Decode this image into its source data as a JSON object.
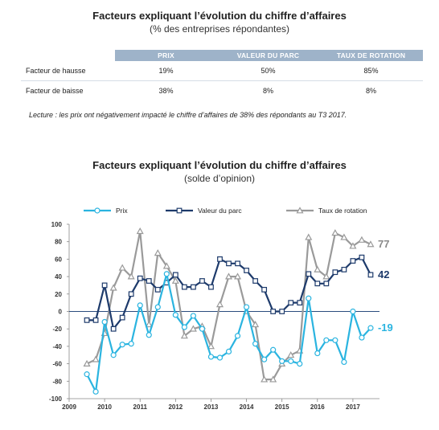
{
  "table": {
    "title": "Facteurs expliquant l’évolution du chiffre d’affaires",
    "subtitle": "(% des entreprises répondantes)",
    "columns": [
      "PRIX",
      "VALEUR DU PARC",
      "TAUX DE ROTATION"
    ],
    "rows": [
      {
        "label": "Facteur de hausse",
        "values": [
          "19%",
          "50%",
          "85%"
        ]
      },
      {
        "label": "Facteur de baisse",
        "values": [
          "38%",
          "8%",
          "8%"
        ]
      }
    ],
    "note": "Lecture : les prix ont négativement impacté le chiffre d’affaires de 38% des répondants au T3 2017."
  },
  "chart_data": {
    "type": "line",
    "title": "Facteurs expliquant l’évolution du chiffre d’affaires",
    "subtitle": "(solde d’opinion)",
    "ylim": [
      -100,
      100
    ],
    "yticks": [
      100,
      80,
      60,
      40,
      20,
      0,
      -20,
      -40,
      -60,
      -80,
      -100
    ],
    "xlim": [
      2009,
      2017.75
    ],
    "xticks": [
      2009,
      2010,
      2011,
      2012,
      2013,
      2014,
      2015,
      2016,
      2017
    ],
    "zero_line": true,
    "legend_position": "top",
    "series": [
      {
        "name": "Prix",
        "color": "#2ab4e0",
        "marker": "circle",
        "end_label": "-19",
        "x": [
          2009.5,
          2009.75,
          2010,
          2010.25,
          2010.5,
          2010.75,
          2011,
          2011.25,
          2011.5,
          2011.75,
          2012,
          2012.25,
          2012.5,
          2012.75,
          2013,
          2013.25,
          2013.5,
          2013.75,
          2014,
          2014.25,
          2014.5,
          2014.75,
          2015,
          2015.25,
          2015.5,
          2015.75,
          2016,
          2016.25,
          2016.5,
          2016.75,
          2017,
          2017.25,
          2017.5
        ],
        "values": [
          -72,
          -92,
          -12,
          -50,
          -38,
          -37,
          7,
          -27,
          5,
          43,
          -4,
          -18,
          -5,
          -20,
          -52,
          -53,
          -46,
          -28,
          5,
          -37,
          -55,
          -44,
          -57,
          -57,
          -60,
          15,
          -48,
          -33,
          -33,
          -58,
          0,
          -30,
          -19
        ]
      },
      {
        "name": "Valeur du parc",
        "color": "#1d3a6b",
        "marker": "square",
        "end_label": "42",
        "x": [
          2009.5,
          2009.75,
          2010,
          2010.25,
          2010.5,
          2010.75,
          2011,
          2011.25,
          2011.5,
          2011.75,
          2012,
          2012.25,
          2012.5,
          2012.75,
          2013,
          2013.25,
          2013.5,
          2013.75,
          2014,
          2014.25,
          2014.5,
          2014.75,
          2015,
          2015.25,
          2015.5,
          2015.75,
          2016,
          2016.25,
          2016.5,
          2016.75,
          2017,
          2017.25,
          2017.5
        ],
        "values": [
          -10,
          -10,
          30,
          -20,
          -7,
          20,
          38,
          35,
          25,
          33,
          42,
          28,
          28,
          35,
          28,
          60,
          55,
          55,
          47,
          35,
          25,
          0,
          0,
          10,
          10,
          43,
          32,
          32,
          45,
          48,
          58,
          62,
          42
        ]
      },
      {
        "name": "Taux de rotation",
        "color": "#9a9a9a",
        "marker": "triangle",
        "end_label": "77",
        "x": [
          2009.5,
          2009.75,
          2010,
          2010.25,
          2010.5,
          2010.75,
          2011,
          2011.25,
          2011.5,
          2011.75,
          2012,
          2012.25,
          2012.5,
          2012.75,
          2013,
          2013.25,
          2013.5,
          2013.75,
          2014,
          2014.25,
          2014.5,
          2014.75,
          2015,
          2015.25,
          2015.5,
          2015.75,
          2016,
          2016.25,
          2016.5,
          2016.75,
          2017,
          2017.25,
          2017.5
        ],
        "values": [
          -60,
          -55,
          -25,
          27,
          50,
          40,
          92,
          -15,
          67,
          52,
          35,
          -28,
          -20,
          -17,
          -40,
          8,
          40,
          40,
          0,
          -15,
          -78,
          -78,
          -60,
          -50,
          -45,
          85,
          48,
          40,
          90,
          85,
          75,
          82,
          77
        ]
      }
    ]
  }
}
